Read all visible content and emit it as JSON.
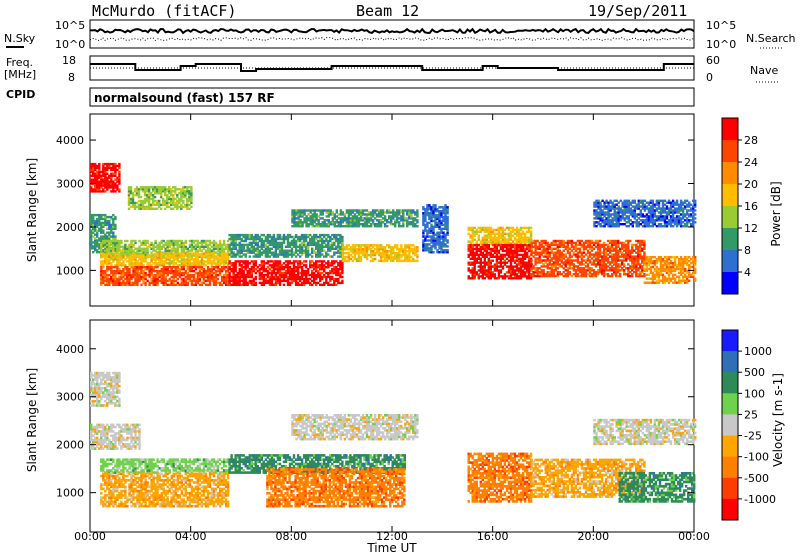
{
  "header": {
    "station": "McMurdo (fitACF)",
    "beam": "Beam 12",
    "date": "19/Sep/2011"
  },
  "noise_panel": {
    "left_label": "N.Sky",
    "right_label": "N.Search",
    "left_ticks": [
      "10^5",
      "10^0"
    ],
    "right_ticks": [
      "10^5",
      "10^0"
    ]
  },
  "freq_panel": {
    "left_label_1": "Freq.",
    "left_label_2": "[MHz]",
    "right_label": "Nave",
    "left_ticks": [
      "18",
      "8"
    ],
    "right_ticks": [
      "60",
      "0"
    ]
  },
  "cpid": {
    "label": "CPID",
    "value": "normalsound (fast) 157 RF"
  },
  "colorbars": {
    "power": {
      "title": "Power [dB]",
      "ticks": [
        "28",
        "24",
        "20",
        "16",
        "12",
        "8",
        "4"
      ],
      "colors": [
        "#ff0000",
        "#ff4400",
        "#ff8c00",
        "#ffbd00",
        "#99cc33",
        "#339966",
        "#2f6fd0",
        "#0000ff"
      ]
    },
    "velocity": {
      "title": "Velocity [m s-1]",
      "ticks": [
        "1000",
        "500",
        "100",
        "25",
        "-25",
        "-100",
        "-500",
        "-1000"
      ],
      "colors": [
        "#1a1aff",
        "#2e6fb5",
        "#2e8b57",
        "#6fd24c",
        "#c8c8c8",
        "#ffa500",
        "#ff7f00",
        "#ff3d00",
        "#ff0000"
      ]
    }
  },
  "chart_data": [
    {
      "type": "heatmap",
      "title": "",
      "xlabel": "Time UT",
      "ylabel": "Slant Range [km]",
      "x_ticks": [
        "00:00",
        "04:00",
        "08:00",
        "12:00",
        "16:00",
        "20:00",
        "00:00"
      ],
      "y_ticks": [
        1000,
        2000,
        3000,
        4000
      ],
      "xlim_hours": [
        0,
        24
      ],
      "ylim_km": [
        180,
        4600
      ],
      "colorbar": "Power [dB]",
      "regions": [
        {
          "t": [
            0.0,
            1.2
          ],
          "r": [
            2800,
            3450
          ],
          "cat": 0
        },
        {
          "t": [
            0.0,
            1.0
          ],
          "r": [
            1400,
            2300
          ],
          "cat": 5
        },
        {
          "t": [
            0.4,
            5.5
          ],
          "r": [
            1300,
            1700
          ],
          "cat": 4
        },
        {
          "t": [
            0.4,
            5.5
          ],
          "r": [
            1100,
            1400
          ],
          "cat": 3
        },
        {
          "t": [
            0.4,
            5.5
          ],
          "r": [
            650,
            1100
          ],
          "cat": 1
        },
        {
          "t": [
            1.5,
            4.0
          ],
          "r": [
            2400,
            2900
          ],
          "cat": 4
        },
        {
          "t": [
            5.5,
            10.0
          ],
          "r": [
            1300,
            1800
          ],
          "cat": 5
        },
        {
          "t": [
            5.5,
            10.0
          ],
          "r": [
            650,
            1200
          ],
          "cat": 0
        },
        {
          "t": [
            10.0,
            13.0
          ],
          "r": [
            1200,
            1600
          ],
          "cat": 3
        },
        {
          "t": [
            8.0,
            13.0
          ],
          "r": [
            2000,
            2400
          ],
          "cat": 5
        },
        {
          "t": [
            13.2,
            14.2
          ],
          "r": [
            1400,
            2500
          ],
          "cat": 6
        },
        {
          "t": [
            15.0,
            17.5
          ],
          "r": [
            1600,
            2000
          ],
          "cat": 3
        },
        {
          "t": [
            15.0,
            17.5
          ],
          "r": [
            800,
            1600
          ],
          "cat": 0
        },
        {
          "t": [
            17.5,
            22.0
          ],
          "r": [
            850,
            1700
          ],
          "cat": 1
        },
        {
          "t": [
            20.0,
            24.0
          ],
          "r": [
            2000,
            2600
          ],
          "cat": 6
        },
        {
          "t": [
            22.0,
            24.0
          ],
          "r": [
            700,
            1300
          ],
          "cat": 2
        }
      ]
    },
    {
      "type": "heatmap",
      "title": "",
      "xlabel": "Time UT",
      "ylabel": "Slant Range [km]",
      "x_ticks": [
        "00:00",
        "04:00",
        "08:00",
        "12:00",
        "16:00",
        "20:00",
        "00:00"
      ],
      "y_ticks": [
        1000,
        2000,
        3000,
        4000
      ],
      "xlim_hours": [
        0,
        24
      ],
      "ylim_km": [
        180,
        4600
      ],
      "colorbar": "Velocity [m s-1]",
      "regions": [
        {
          "t": [
            0.0,
            1.2
          ],
          "r": [
            2800,
            3500
          ],
          "cat": 4
        },
        {
          "t": [
            0.0,
            2.0
          ],
          "r": [
            1900,
            2400
          ],
          "cat": 4
        },
        {
          "t": [
            0.4,
            5.5
          ],
          "r": [
            1400,
            1700
          ],
          "cat": 3
        },
        {
          "t": [
            0.4,
            5.5
          ],
          "r": [
            700,
            1400
          ],
          "cat": 5
        },
        {
          "t": [
            5.5,
            12.5
          ],
          "r": [
            1400,
            1800
          ],
          "cat": 2
        },
        {
          "t": [
            7.0,
            12.5
          ],
          "r": [
            700,
            1500
          ],
          "cat": 6
        },
        {
          "t": [
            8.0,
            13.0
          ],
          "r": [
            2100,
            2600
          ],
          "cat": 4
        },
        {
          "t": [
            15.0,
            17.5
          ],
          "r": [
            800,
            1800
          ],
          "cat": 6
        },
        {
          "t": [
            17.5,
            22.0
          ],
          "r": [
            900,
            1700
          ],
          "cat": 5
        },
        {
          "t": [
            21.0,
            24.0
          ],
          "r": [
            800,
            1400
          ],
          "cat": 2
        },
        {
          "t": [
            20.0,
            24.0
          ],
          "r": [
            2000,
            2500
          ],
          "cat": 4
        }
      ]
    }
  ]
}
